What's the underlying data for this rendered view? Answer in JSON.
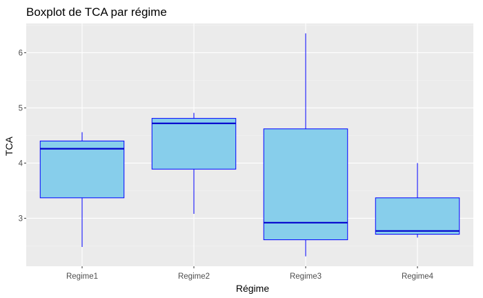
{
  "chart_data": {
    "type": "boxplot",
    "title": "Boxplot de TCA par régime",
    "xlabel": "Régime",
    "ylabel": "TCA",
    "categories": [
      "Regime1",
      "Regime2",
      "Regime3",
      "Regime4"
    ],
    "boxes": [
      {
        "category": "Regime1",
        "min": 2.48,
        "q1": 3.37,
        "median": 4.26,
        "q3": 4.4,
        "max": 4.56
      },
      {
        "category": "Regime2",
        "min": 3.08,
        "q1": 3.89,
        "median": 4.72,
        "q3": 4.81,
        "max": 4.91
      },
      {
        "category": "Regime3",
        "min": 2.31,
        "q1": 2.61,
        "median": 2.92,
        "q3": 4.62,
        "max": 6.35
      },
      {
        "category": "Regime4",
        "min": 2.65,
        "q1": 2.71,
        "median": 2.77,
        "q3": 3.37,
        "max": 4.0
      }
    ],
    "yticks": [
      3,
      4,
      5,
      6
    ],
    "ylim": [
      2.13,
      6.53
    ],
    "grid": true,
    "legend": "none",
    "colors": {
      "box_fill": "#87ceeb",
      "box_stroke": "#0000ff",
      "median": "#0000cd",
      "panel_bg": "#ebebeb",
      "grid_major": "#ffffff",
      "grid_minor": "#f4f4f4"
    }
  }
}
